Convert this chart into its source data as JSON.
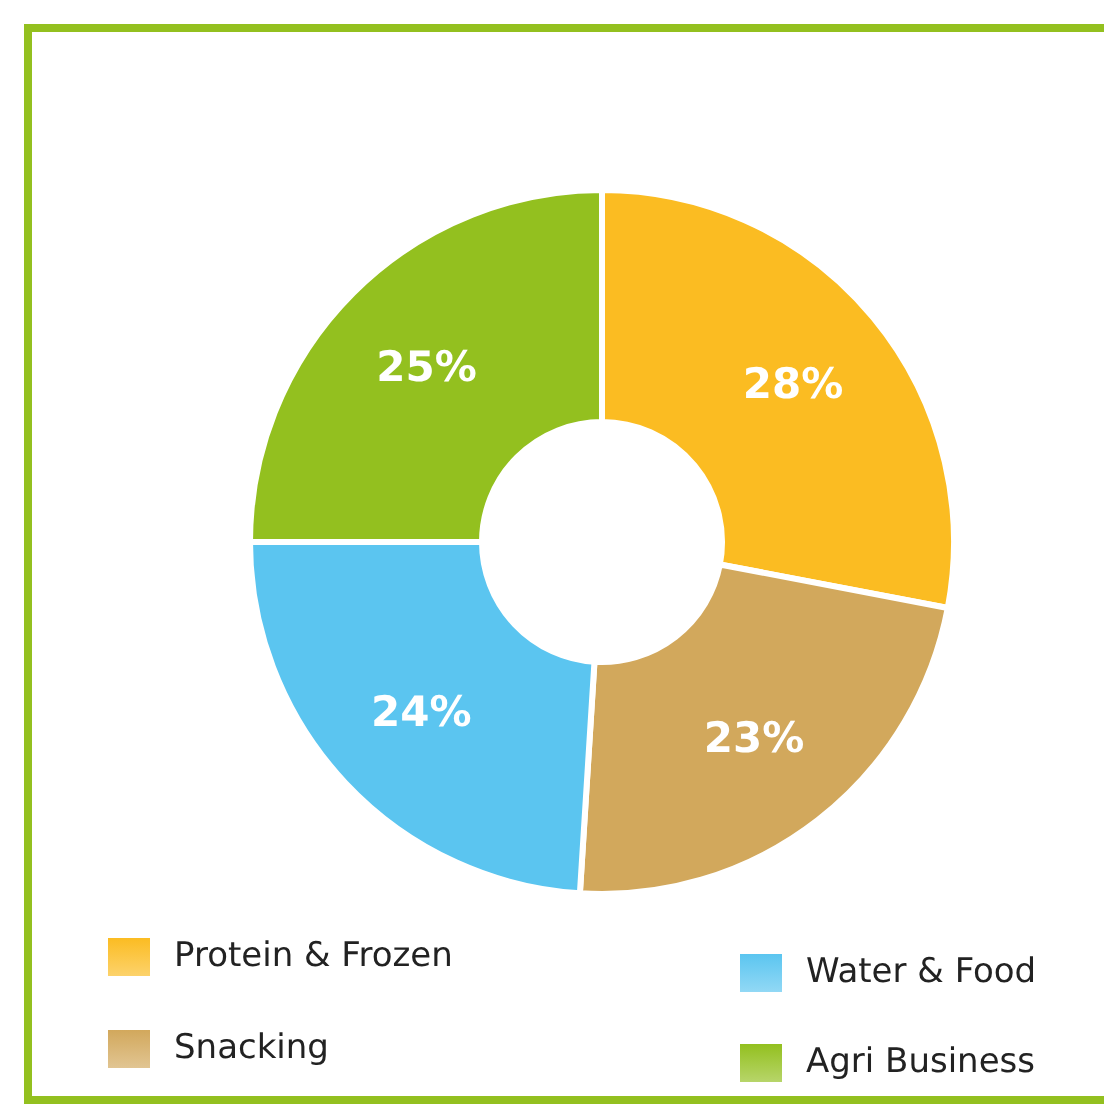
{
  "chart_data": {
    "type": "donut",
    "categories": [
      "Protein & Frozen",
      "Snacking",
      "Water & Food",
      "Agri Business"
    ],
    "values": [
      28,
      23,
      24,
      25
    ],
    "colors": [
      "#fbbc22",
      "#d2a85c",
      "#5bc5f0",
      "#93c01f"
    ],
    "value_labels": [
      "28%",
      "23%",
      "24%",
      "25%"
    ],
    "legend": "bottom"
  }
}
